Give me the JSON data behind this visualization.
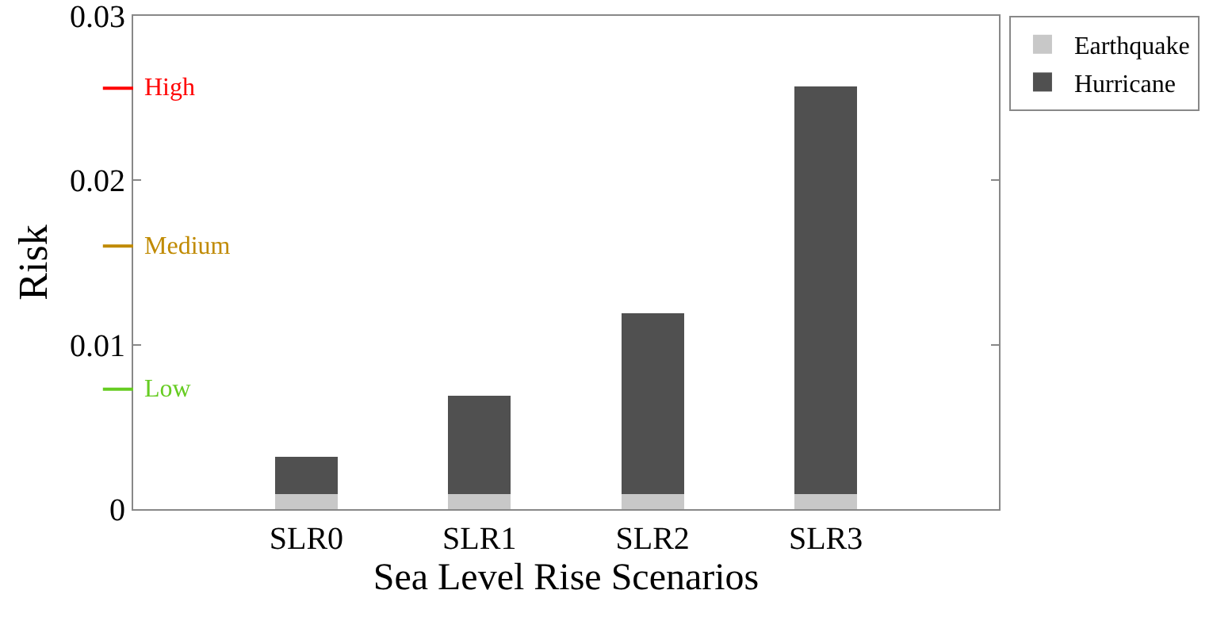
{
  "chart_data": {
    "type": "bar",
    "xlabel": "Sea Level Rise Scenarios",
    "ylabel": "Risk",
    "categories": [
      "SLR0",
      "SLR1",
      "SLR2",
      "SLR3"
    ],
    "stacked": true,
    "series": [
      {
        "name": "Earthquake",
        "color": "#c8c8c8",
        "values": [
          0.0009,
          0.0009,
          0.0009,
          0.0009
        ]
      },
      {
        "name": "Hurricane",
        "color": "#505050",
        "values": [
          0.0023,
          0.006,
          0.011,
          0.0248
        ]
      }
    ],
    "ylim": [
      0,
      0.03
    ],
    "yticks": [
      0,
      0.01,
      0.02,
      0.03
    ],
    "ref_lines": [
      {
        "axis": "y",
        "value": 0.0256,
        "label": "High",
        "color": "#ff0000"
      },
      {
        "axis": "y",
        "value": 0.016,
        "label": "Medium",
        "color": "#c08a00"
      },
      {
        "axis": "y",
        "value": 0.0073,
        "label": "Low",
        "color": "#66cc22"
      }
    ],
    "grid": false,
    "legend": "top right"
  }
}
